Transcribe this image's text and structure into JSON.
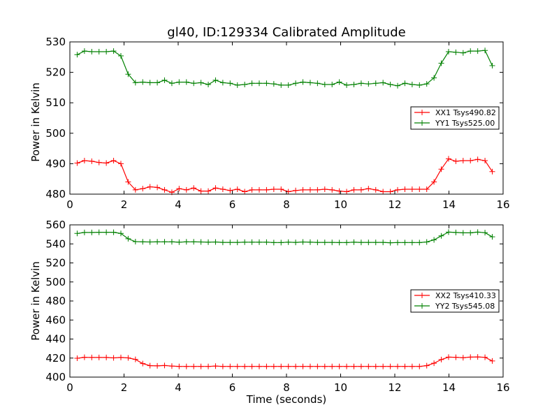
{
  "chart_data": [
    {
      "type": "line",
      "title": "gl40, ID:129334 Calibrated Amplitude",
      "xlabel": "",
      "ylabel": "Power in Kelvin",
      "xlim": [
        0,
        16
      ],
      "ylim": [
        480,
        530
      ],
      "xticks": [
        "0",
        "2",
        "4",
        "6",
        "8",
        "10",
        "12",
        "14",
        "16"
      ],
      "yticks": [
        "480",
        "490",
        "500",
        "510",
        "520",
        "530"
      ],
      "grid": false,
      "legend": "center-right",
      "series": [
        {
          "name": "XX1 Tsys490.82",
          "color": "#ff0000",
          "values": [
            490.2,
            491.0,
            490.8,
            490.4,
            490.2,
            491.0,
            490.0,
            484.0,
            481.4,
            481.8,
            482.4,
            482.2,
            481.4,
            480.6,
            481.8,
            481.4,
            482.0,
            481.0,
            481.0,
            482.0,
            481.6,
            481.2,
            481.6,
            480.8,
            481.4,
            481.4,
            481.4,
            481.6,
            481.6,
            480.8,
            481.2,
            481.4,
            481.4,
            481.4,
            481.6,
            481.4,
            481.0,
            480.8,
            481.4,
            481.4,
            481.8,
            481.4,
            480.8,
            480.8,
            481.4,
            481.6,
            481.6,
            481.6,
            481.6,
            484.0,
            488.2,
            491.6,
            490.8,
            491.0,
            491.0,
            491.4,
            491.0,
            487.4
          ]
        },
        {
          "name": "YY1 Tsys525.00",
          "color": "#008000",
          "values": [
            525.8,
            527.0,
            526.8,
            526.8,
            526.8,
            527.0,
            525.4,
            519.4,
            516.6,
            516.8,
            516.6,
            516.6,
            517.4,
            516.4,
            516.8,
            516.8,
            516.4,
            516.6,
            516.0,
            517.4,
            516.6,
            516.4,
            515.8,
            516.0,
            516.4,
            516.4,
            516.4,
            516.2,
            515.8,
            515.8,
            516.4,
            516.8,
            516.6,
            516.4,
            516.0,
            516.0,
            516.8,
            515.8,
            516.0,
            516.4,
            516.2,
            516.4,
            516.6,
            516.0,
            515.6,
            516.4,
            516.0,
            515.8,
            516.2,
            518.2,
            523.0,
            526.8,
            526.6,
            526.4,
            527.0,
            527.0,
            527.2,
            522.2
          ]
        }
      ]
    },
    {
      "type": "line",
      "title": "",
      "xlabel": "Time (seconds)",
      "ylabel": "Power in Kelvin",
      "xlim": [
        0,
        16
      ],
      "ylim": [
        400,
        560
      ],
      "xticks": [
        "0",
        "2",
        "4",
        "6",
        "8",
        "10",
        "12",
        "14",
        "16"
      ],
      "yticks": [
        "400",
        "420",
        "440",
        "460",
        "480",
        "500",
        "520",
        "540",
        "560"
      ],
      "grid": false,
      "legend": "center-right",
      "series": [
        {
          "name": "XX2 Tsys410.33",
          "color": "#ff0000",
          "values": [
            419.8,
            420.8,
            420.6,
            420.6,
            420.6,
            420.2,
            420.6,
            420.2,
            418.6,
            414.2,
            412.0,
            411.8,
            412.2,
            411.6,
            411.2,
            411.2,
            411.2,
            411.2,
            411.2,
            411.6,
            411.2,
            411.2,
            411.2,
            411.2,
            411.2,
            411.2,
            411.2,
            411.2,
            411.2,
            411.2,
            411.2,
            411.2,
            411.2,
            411.2,
            411.2,
            411.2,
            411.2,
            411.2,
            411.2,
            411.2,
            411.2,
            411.2,
            411.2,
            411.2,
            411.2,
            411.2,
            411.2,
            411.2,
            412.0,
            414.6,
            418.4,
            421.0,
            420.8,
            420.4,
            421.0,
            421.2,
            420.8,
            417.0
          ]
        },
        {
          "name": "YY2 Tsys545.08",
          "color": "#008000",
          "values": [
            551.0,
            552.0,
            552.0,
            552.2,
            552.2,
            552.2,
            551.0,
            545.4,
            542.4,
            542.2,
            542.0,
            542.2,
            542.2,
            542.2,
            541.8,
            542.2,
            542.2,
            542.0,
            541.8,
            542.0,
            541.6,
            541.6,
            541.6,
            541.8,
            541.8,
            541.8,
            541.8,
            541.4,
            541.4,
            541.8,
            541.6,
            542.0,
            541.8,
            541.6,
            541.6,
            541.6,
            541.4,
            541.4,
            541.8,
            541.6,
            541.6,
            541.6,
            541.6,
            541.2,
            541.4,
            541.4,
            541.4,
            541.4,
            542.0,
            544.2,
            548.4,
            552.4,
            552.0,
            551.6,
            551.6,
            552.4,
            551.8,
            547.4
          ]
        }
      ]
    }
  ]
}
